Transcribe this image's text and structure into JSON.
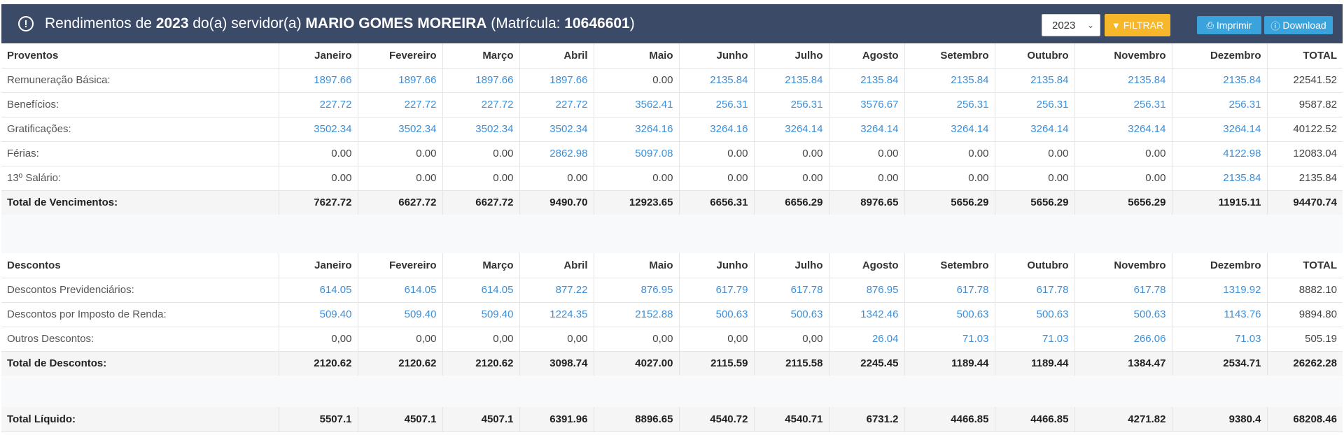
{
  "header": {
    "title_prefix": "Rendimentos de",
    "year": "2023",
    "title_mid": "do(a) servidor(a)",
    "name": "MARIO GOMES MOREIRA",
    "mat_open": "(Matrícula:",
    "matricula": "10646601",
    "mat_close": ")",
    "alert_glyph": "!"
  },
  "controls": {
    "year_value": "2023",
    "filter_label": "FILTRAR",
    "print_label": "Imprimir",
    "download_label": "Download"
  },
  "months": [
    "Janeiro",
    "Fevereiro",
    "Março",
    "Abril",
    "Maio",
    "Junho",
    "Julho",
    "Agosto",
    "Setembro",
    "Outubro",
    "Novembro",
    "Dezembro",
    "TOTAL"
  ],
  "proventos": {
    "heading": "Proventos",
    "rows": [
      {
        "label": "Remuneração Básica:",
        "values": [
          "1897.66",
          "1897.66",
          "1897.66",
          "1897.66",
          "0.00",
          "2135.84",
          "2135.84",
          "2135.84",
          "2135.84",
          "2135.84",
          "2135.84",
          "2135.84",
          "22541.52"
        ]
      },
      {
        "label": "Benefícios:",
        "values": [
          "227.72",
          "227.72",
          "227.72",
          "227.72",
          "3562.41",
          "256.31",
          "256.31",
          "3576.67",
          "256.31",
          "256.31",
          "256.31",
          "256.31",
          "9587.82"
        ]
      },
      {
        "label": "Gratificações:",
        "values": [
          "3502.34",
          "3502.34",
          "3502.34",
          "3502.34",
          "3264.16",
          "3264.16",
          "3264.14",
          "3264.14",
          "3264.14",
          "3264.14",
          "3264.14",
          "3264.14",
          "40122.52"
        ]
      },
      {
        "label": "Férias:",
        "values": [
          "0.00",
          "0.00",
          "0.00",
          "2862.98",
          "5097.08",
          "0.00",
          "0.00",
          "0.00",
          "0.00",
          "0.00",
          "0.00",
          "4122.98",
          "12083.04"
        ]
      },
      {
        "label": "13º Salário:",
        "values": [
          "0.00",
          "0.00",
          "0.00",
          "0.00",
          "0.00",
          "0.00",
          "0.00",
          "0.00",
          "0.00",
          "0.00",
          "0.00",
          "2135.84",
          "2135.84"
        ]
      }
    ],
    "total": {
      "label": "Total de Vencimentos:",
      "values": [
        "7627.72",
        "6627.72",
        "6627.72",
        "9490.70",
        "12923.65",
        "6656.31",
        "6656.29",
        "8976.65",
        "5656.29",
        "5656.29",
        "5656.29",
        "11915.11",
        "94470.74"
      ]
    }
  },
  "descontos": {
    "heading": "Descontos",
    "rows": [
      {
        "label": "Descontos Previdenciários:",
        "values": [
          "614.05",
          "614.05",
          "614.05",
          "877.22",
          "876.95",
          "617.79",
          "617.78",
          "876.95",
          "617.78",
          "617.78",
          "617.78",
          "1319.92",
          "8882.10"
        ]
      },
      {
        "label": "Descontos por Imposto de Renda:",
        "values": [
          "509.40",
          "509.40",
          "509.40",
          "1224.35",
          "2152.88",
          "500.63",
          "500.63",
          "1342.46",
          "500.63",
          "500.63",
          "500.63",
          "1143.76",
          "9894.80"
        ]
      },
      {
        "label": "Outros Descontos:",
        "values": [
          "0,00",
          "0,00",
          "0,00",
          "0,00",
          "0,00",
          "0,00",
          "0,00",
          "26.04",
          "71.03",
          "71.03",
          "266.06",
          "71.03",
          "505.19"
        ]
      }
    ],
    "total": {
      "label": "Total de Descontos:",
      "values": [
        "2120.62",
        "2120.62",
        "2120.62",
        "3098.74",
        "4027.00",
        "2115.59",
        "2115.58",
        "2245.45",
        "1189.44",
        "1189.44",
        "1384.47",
        "2534.71",
        "26262.28"
      ]
    }
  },
  "liquido": {
    "label": "Total Líquido:",
    "values": [
      "5507.1",
      "4507.1",
      "4507.1",
      "6391.96",
      "8896.65",
      "4540.72",
      "4540.71",
      "6731.2",
      "4466.85",
      "4466.85",
      "4271.82",
      "9380.4",
      "68208.46"
    ]
  },
  "colors": {
    "header": "#3b4a67",
    "filter": "#f6b72b",
    "button": "#3aa3dc",
    "link": "#3d8fd8"
  }
}
